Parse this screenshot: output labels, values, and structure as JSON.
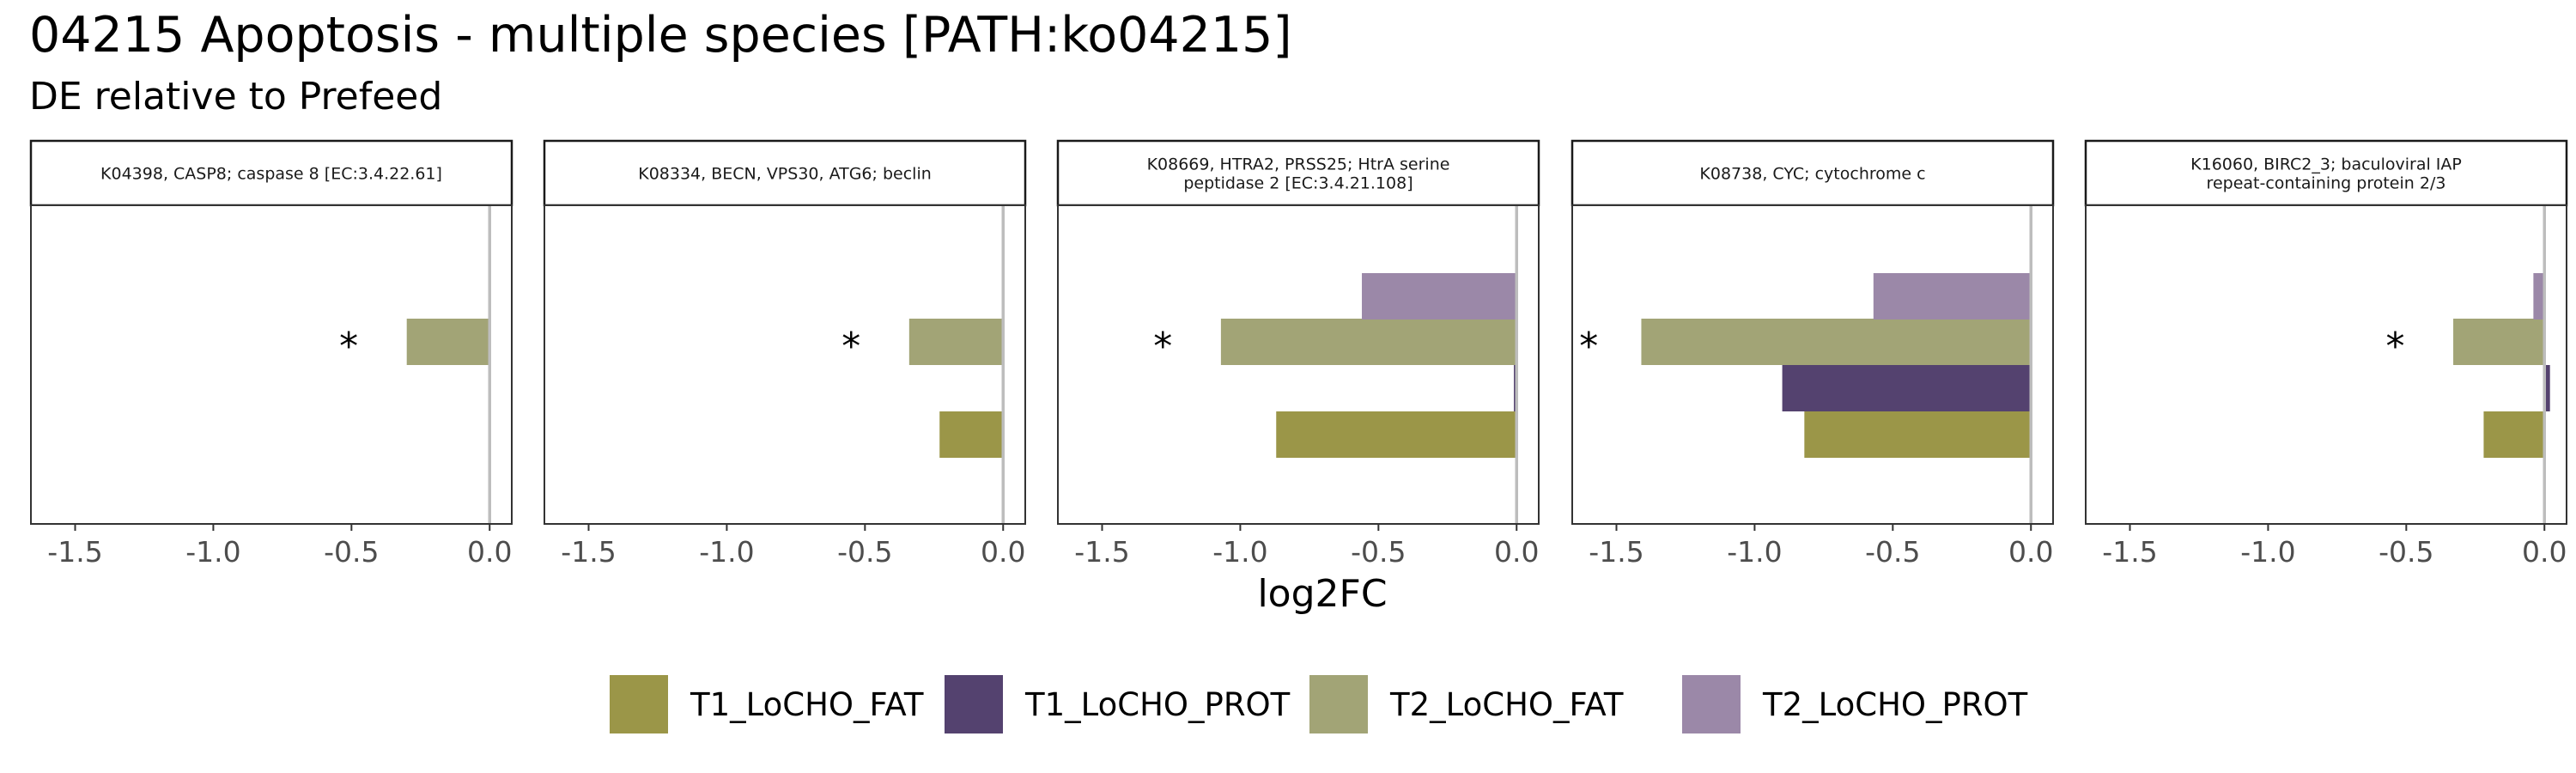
{
  "chart_data": {
    "type": "bar",
    "title": "04215 Apoptosis - multiple species [PATH:ko04215]",
    "subtitle": "DE relative to Prefeed",
    "xlabel": "log2FC",
    "xlim": [
      -1.66,
      0.08
    ],
    "xticks": [
      -1.5,
      -1.0,
      -0.5,
      0.0
    ],
    "xtick_labels": [
      "-1.5",
      "-1.0",
      "-0.5",
      "0.0"
    ],
    "grid": false,
    "legend_position": "bottom",
    "series": [
      {
        "name": "T1_LoCHO_FAT",
        "color": "#9b9648"
      },
      {
        "name": "T1_LoCHO_PROT",
        "color": "#54426f"
      },
      {
        "name": "T2_LoCHO_FAT",
        "color": "#a2a476"
      },
      {
        "name": "T2_LoCHO_PROT",
        "color": "#9b88a8"
      }
    ],
    "panels": [
      {
        "strip_lines": [
          "K04398, CASP8; caspase 8 [EC:3.4.22.61]"
        ],
        "values": {
          "T1_LoCHO_FAT": null,
          "T1_LoCHO_PROT": null,
          "T2_LoCHO_FAT": -0.3,
          "T2_LoCHO_PROT": null
        },
        "significance": {
          "marker": "*",
          "x": -0.51
        }
      },
      {
        "strip_lines": [
          "K08334, BECN, VPS30, ATG6; beclin"
        ],
        "values": {
          "T1_LoCHO_FAT": -0.23,
          "T1_LoCHO_PROT": null,
          "T2_LoCHO_FAT": -0.34,
          "T2_LoCHO_PROT": null
        },
        "significance": {
          "marker": "*",
          "x": -0.55
        }
      },
      {
        "strip_lines": [
          "K08669, HTRA2, PRSS25; HtrA serine",
          "peptidase 2 [EC:3.4.21.108]"
        ],
        "values": {
          "T1_LoCHO_FAT": -0.87,
          "T1_LoCHO_PROT": -0.01,
          "T2_LoCHO_FAT": -1.07,
          "T2_LoCHO_PROT": -0.56
        },
        "significance": {
          "marker": "*",
          "x": -1.28
        }
      },
      {
        "strip_lines": [
          "K08738, CYC; cytochrome c"
        ],
        "values": {
          "T1_LoCHO_FAT": -0.82,
          "T1_LoCHO_PROT": -0.9,
          "T2_LoCHO_FAT": -1.41,
          "T2_LoCHO_PROT": -0.57
        },
        "significance": {
          "marker": "*",
          "x": -1.6
        }
      },
      {
        "strip_lines": [
          "K16060, BIRC2_3; baculoviral IAP",
          "repeat-containing protein 2/3"
        ],
        "values": {
          "T1_LoCHO_FAT": -0.22,
          "T1_LoCHO_PROT": 0.02,
          "T2_LoCHO_FAT": -0.33,
          "T2_LoCHO_PROT": -0.04
        },
        "significance": {
          "marker": "*",
          "x": -0.54
        }
      }
    ]
  }
}
